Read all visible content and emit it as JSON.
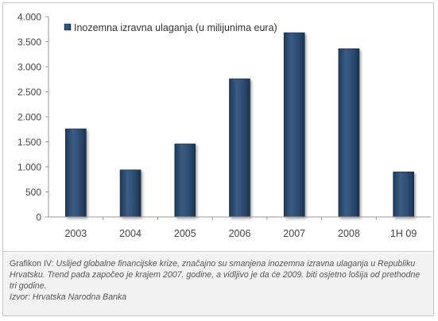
{
  "chart_data": {
    "type": "bar",
    "title": "",
    "xlabel": "",
    "ylabel": "",
    "legend": "Inozemna izravna ulaganja (u milijunima eura)",
    "legend_position": "top-left",
    "categories": [
      "2003",
      "2004",
      "2005",
      "2006",
      "2007",
      "2008",
      "1H 09"
    ],
    "values": [
      1760,
      940,
      1460,
      2760,
      3680,
      3360,
      900
    ],
    "ylim": [
      0,
      4000
    ],
    "yticks": [
      0,
      500,
      1000,
      1500,
      2000,
      2500,
      3000,
      3500,
      4000
    ],
    "ytick_labels": [
      "0",
      "500",
      "1.000",
      "1.500",
      "2.000",
      "2.500",
      "3.000",
      "3.500",
      "4.000"
    ],
    "grid": false,
    "bar_color": "#2b4a6e"
  },
  "caption": {
    "label": "Grafikon IV:",
    "text": "Uslijed globalne financijske krize, značajno su smanjena inozemna izravna ulaganja u Republiku Hrvatsku. Trend pada započeo je krajem 2007. godine, a vidljivo je da će 2009. biti osjetno lošija od prethodne tri godine.",
    "source": "Izvor: Hrvatska Narodna Banka"
  }
}
